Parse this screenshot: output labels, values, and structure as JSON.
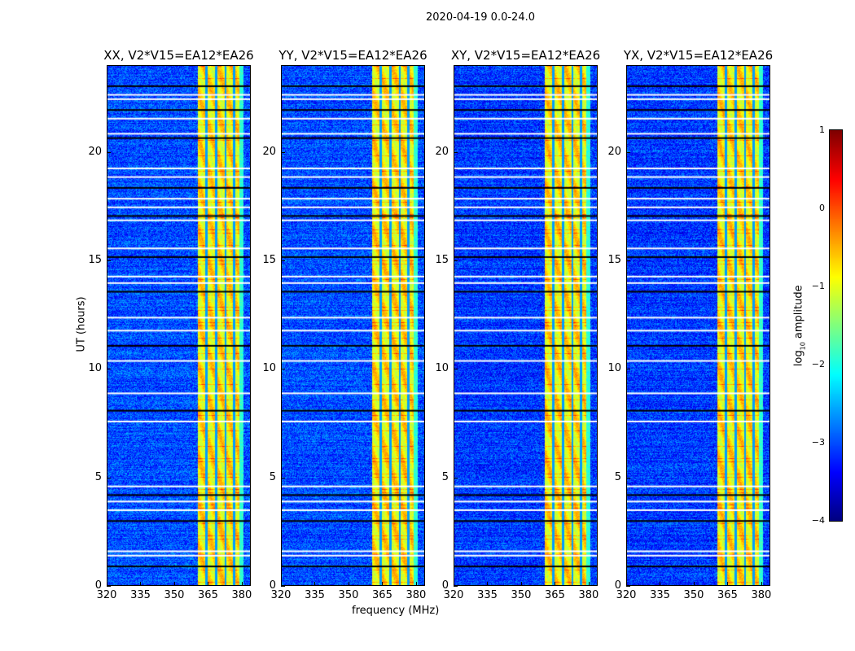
{
  "chart_data": {
    "type": "heatmap",
    "title": "2020-04-19 0.0-24.0",
    "xlabel": "frequency (MHz)",
    "ylabel": "UT (hours)",
    "xlim": [
      320,
      384
    ],
    "ylim": [
      0,
      24
    ],
    "xticks": [
      "320",
      "335",
      "350",
      "365",
      "380"
    ],
    "xtick_values": [
      320,
      335,
      350,
      365,
      380
    ],
    "yticks": [
      "0",
      "5",
      "10",
      "15",
      "20"
    ],
    "ytick_values": [
      0,
      5,
      10,
      15,
      20
    ],
    "panels": [
      {
        "title": "XX, V2*V15=EA12*EA26",
        "background_log_amp": -3.0
      },
      {
        "title": "YY, V2*V15=EA12*EA26",
        "background_log_amp": -3.0
      },
      {
        "title": "XY, V2*V15=EA12*EA26",
        "background_log_amp": -3.1
      },
      {
        "title": "YX, V2*V15=EA12*EA26",
        "background_log_amp": -3.1
      }
    ],
    "rfi_band_mhz": [
      360.5,
      381
    ],
    "rfi_band_log_amp": -0.8,
    "band_gaps_mhz": [
      364.2,
      368.6,
      372.8,
      376.6
    ],
    "flagged_hours": [
      0.9,
      1.4,
      1.6,
      3.0,
      3.5,
      3.9,
      4.2,
      4.6,
      7.6,
      8.1,
      8.9,
      10.4,
      11.1,
      11.8,
      12.4,
      13.6,
      14.0,
      14.3,
      15.2,
      15.6,
      16.9,
      17.1,
      17.5,
      17.9,
      18.4,
      18.9,
      19.3,
      20.7,
      20.9,
      21.6,
      22.0,
      22.5,
      22.7,
      23.1
    ],
    "colorbar": {
      "label": "log10 amplitude",
      "label_main": "log",
      "label_sub": "10",
      "label_rest": " amplitude",
      "range": [
        -4,
        1
      ],
      "ticks": [
        "1",
        "0",
        "−1",
        "−2",
        "−3",
        "−4"
      ],
      "tick_values": [
        1,
        0,
        -1,
        -2,
        -3,
        -4
      ],
      "colormap": "jet"
    }
  }
}
